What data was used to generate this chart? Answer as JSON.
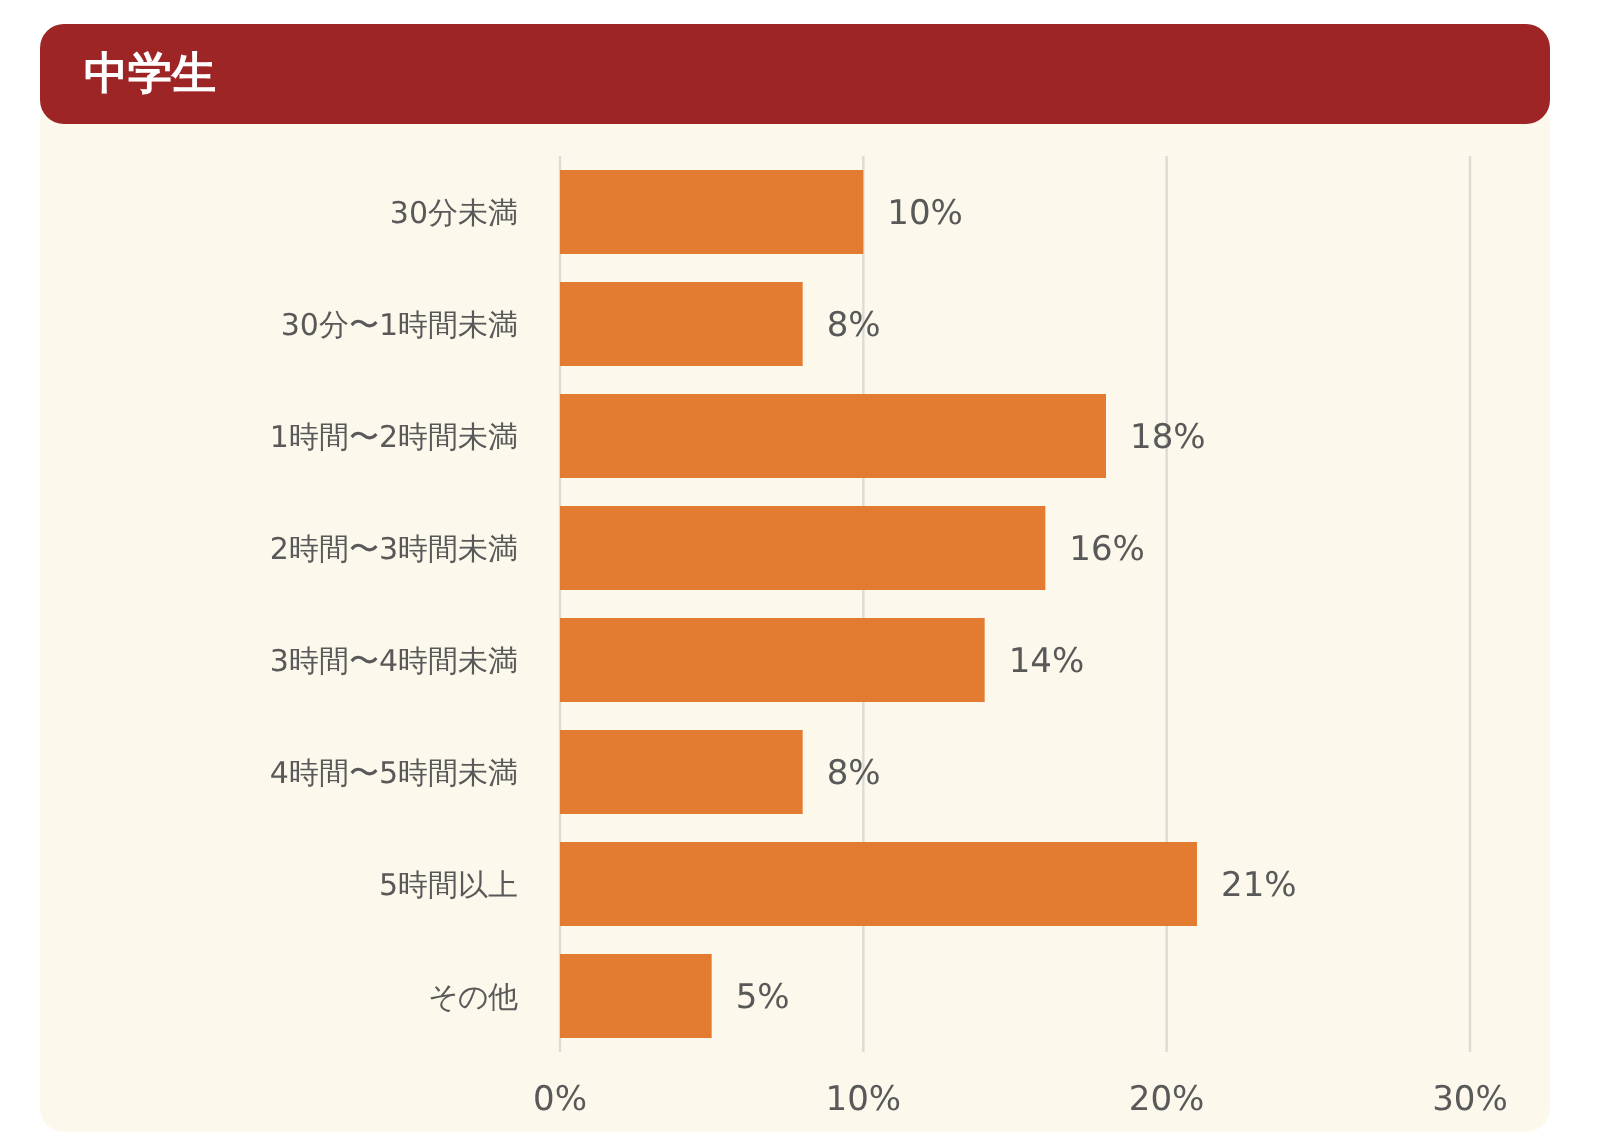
{
  "chart_data": {
    "type": "bar",
    "orientation": "horizontal",
    "title": "中学生",
    "categories": [
      "30分未満",
      "30分〜1時間未満",
      "1時間〜2時間未満",
      "2時間〜3時間未満",
      "3時間〜4時間未満",
      "4時間〜5時間未満",
      "5時間以上",
      "その他"
    ],
    "values": [
      10,
      8,
      18,
      16,
      14,
      8,
      21,
      5
    ],
    "value_labels": [
      "10%",
      "8%",
      "18%",
      "16%",
      "14%",
      "8%",
      "21%",
      "5%"
    ],
    "color": "#e37b31",
    "xlim": [
      0,
      30
    ],
    "xticks": [
      {
        "value": 0,
        "label": "0%"
      },
      {
        "value": 10,
        "label": "10%"
      },
      {
        "value": 20,
        "label": "20%"
      },
      {
        "value": 30,
        "label": "30%"
      }
    ],
    "grid": "x"
  }
}
